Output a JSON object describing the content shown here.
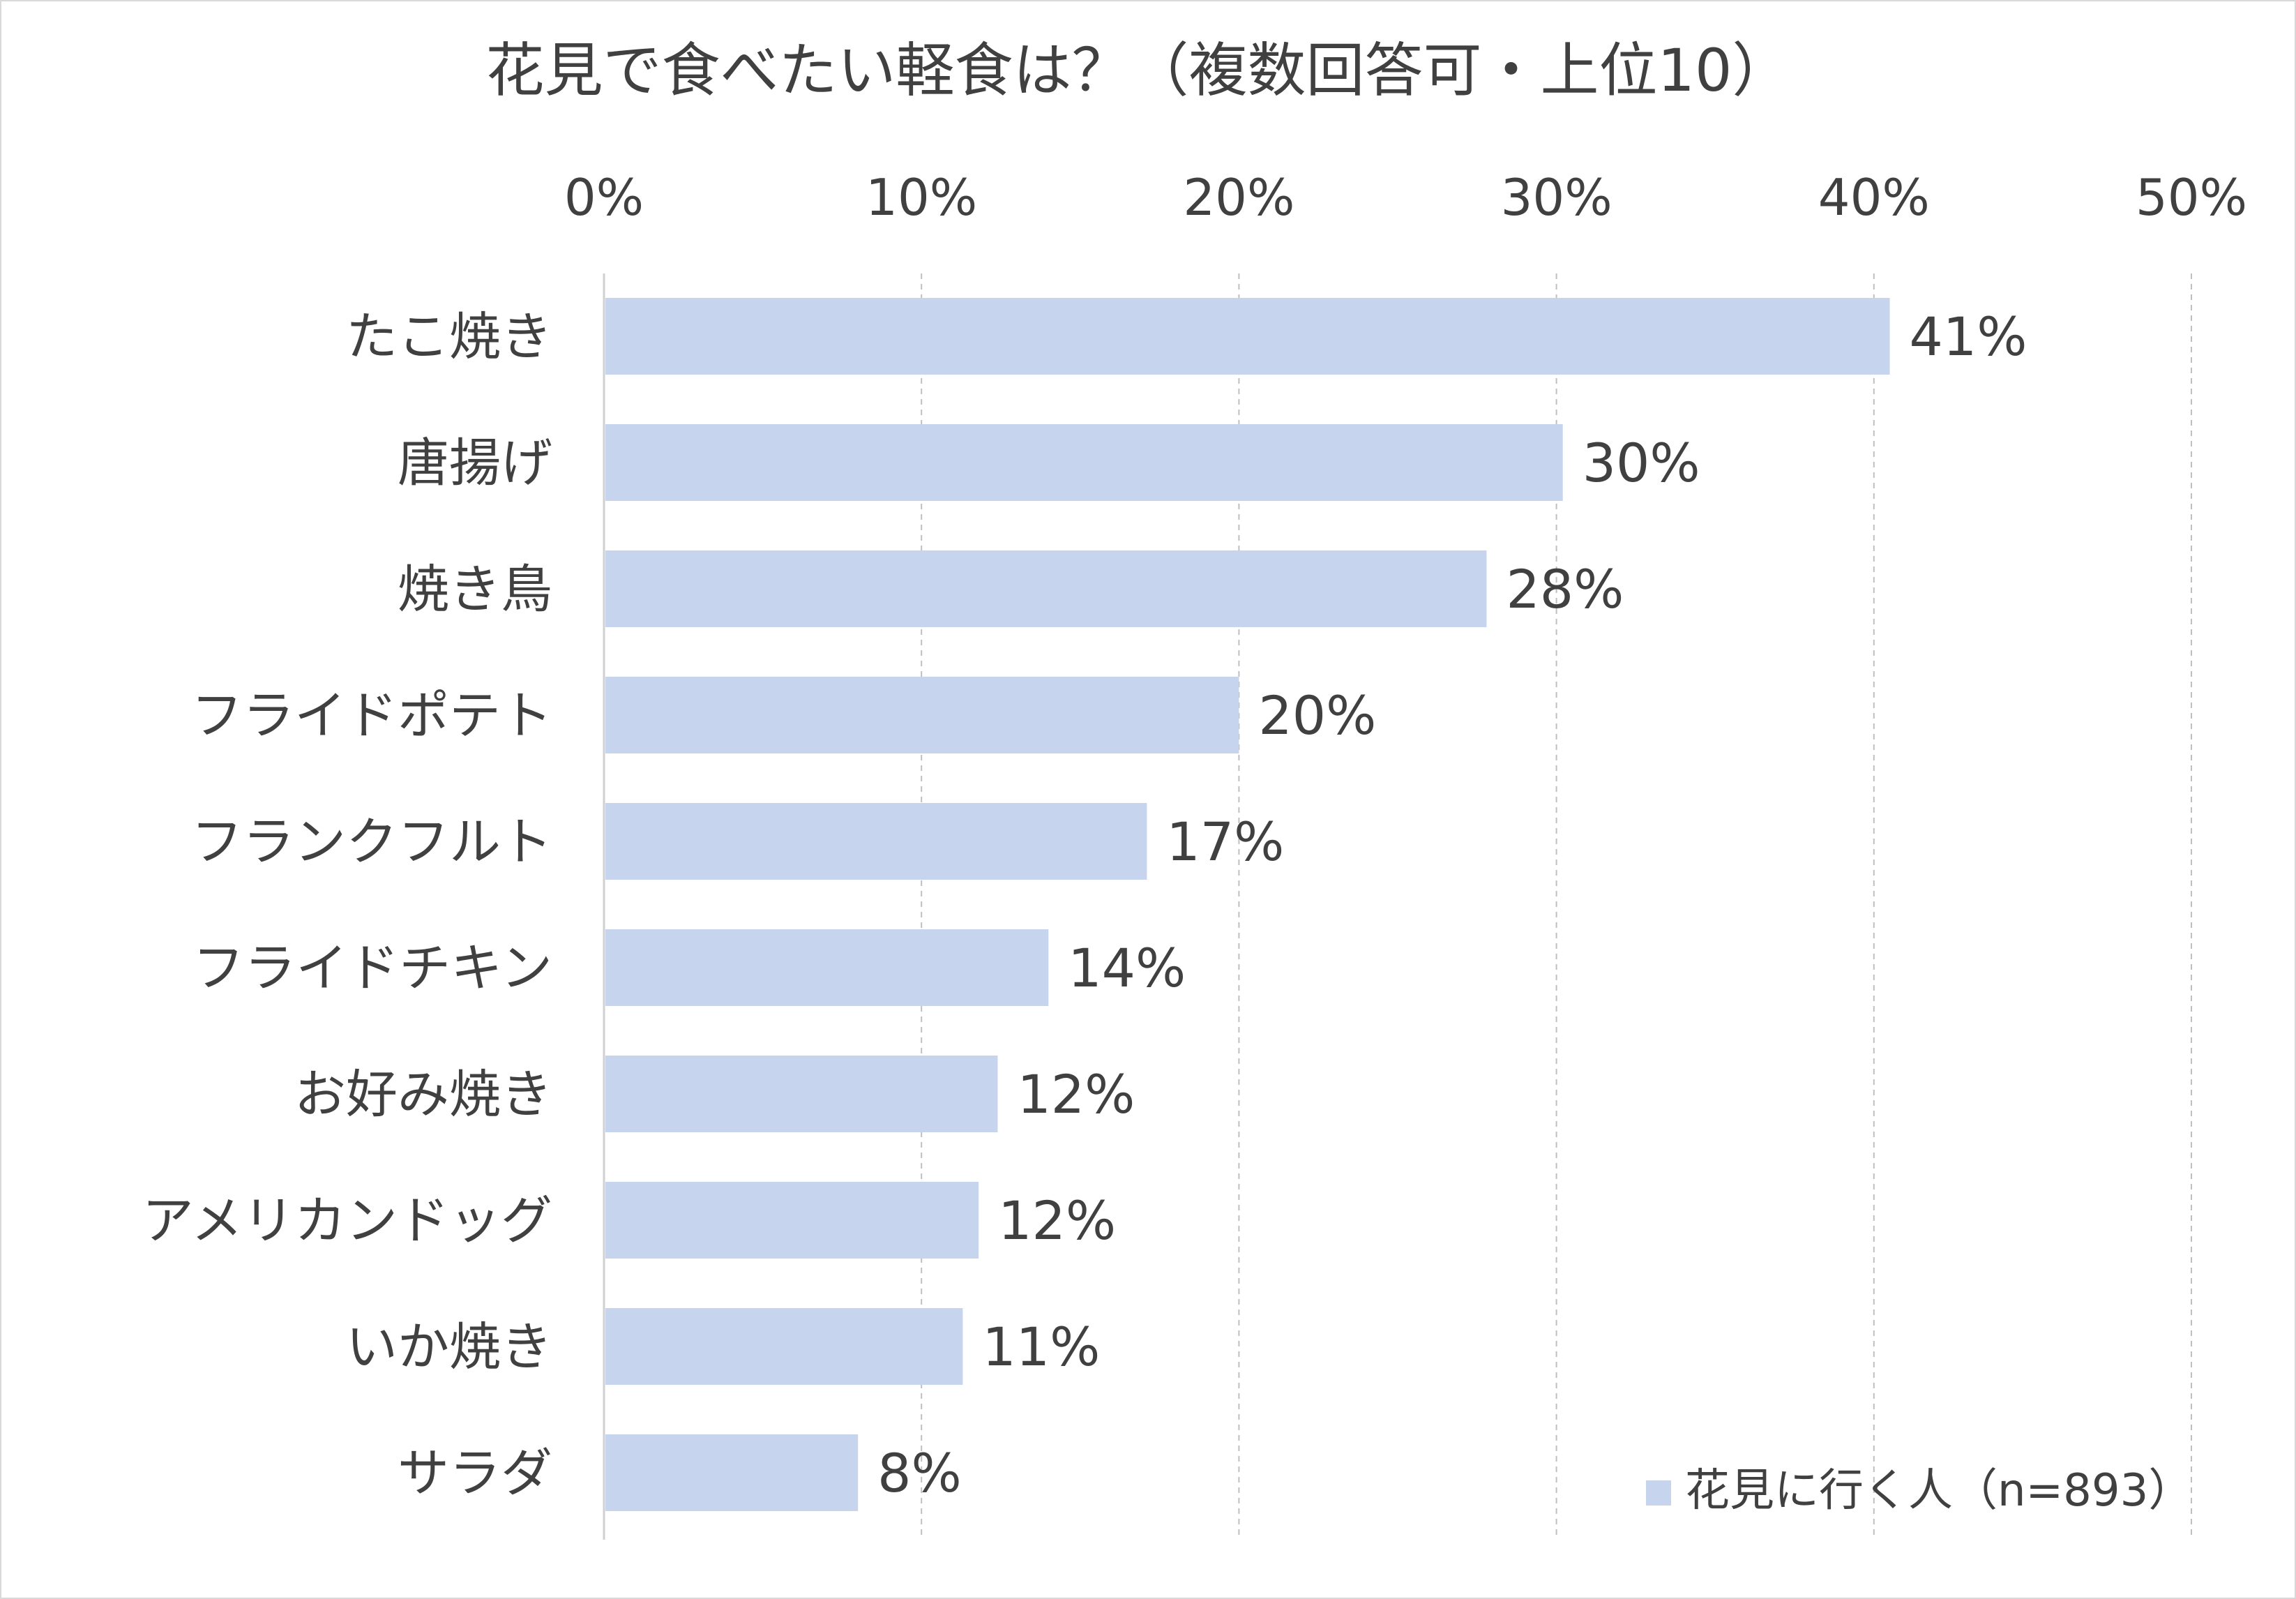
{
  "chart_data": {
    "type": "bar",
    "orientation": "horizontal",
    "title": "花見で食べたい軽食は？（複数回答可・上位10）",
    "xlabel": "",
    "ylabel": "",
    "xlim": [
      0,
      50
    ],
    "x_axis_position": "top",
    "tick_values": [
      0,
      10,
      20,
      30,
      40,
      50
    ],
    "tick_labels": [
      "0%",
      "10%",
      "20%",
      "30%",
      "40%",
      "50%"
    ],
    "grid": true,
    "legend_position": "bottom-right",
    "categories": [
      "たこ焼き",
      "唐揚げ",
      "焼き鳥",
      "フライドポテト",
      "フランクフルト",
      "フライドチキン",
      "お好み焼き",
      "アメリカンドッグ",
      "いか焼き",
      "サラダ"
    ],
    "series": [
      {
        "name": "花見に行く人（n=893）",
        "color": "#c6d4ee",
        "values": [
          40.5,
          30.2,
          27.8,
          20.0,
          17.1,
          14.0,
          12.4,
          11.8,
          11.3,
          8.0
        ],
        "data_labels": [
          "41%",
          "30%",
          "28%",
          "20%",
          "17%",
          "14%",
          "12%",
          "12%",
          "11%",
          "8%"
        ]
      }
    ]
  }
}
